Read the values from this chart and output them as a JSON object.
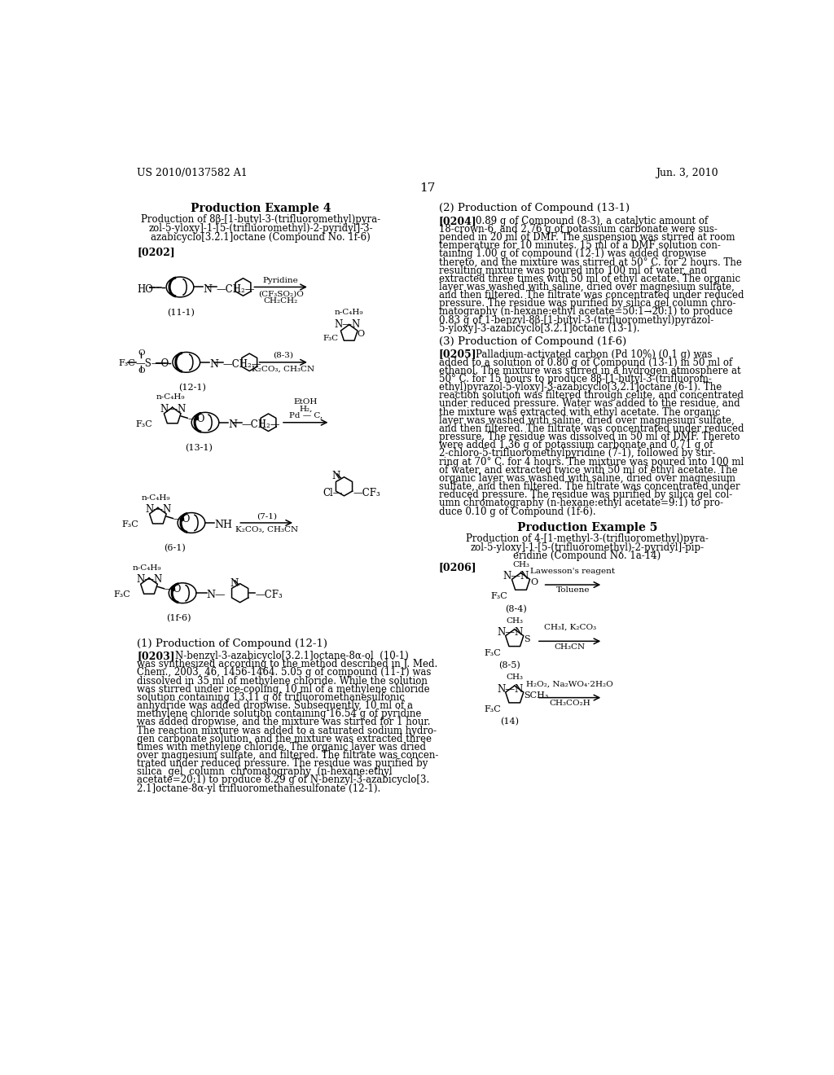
{
  "background_color": "#ffffff",
  "header_left": "US 2010/0137582 A1",
  "header_right": "Jun. 3, 2010",
  "page_number": "17"
}
